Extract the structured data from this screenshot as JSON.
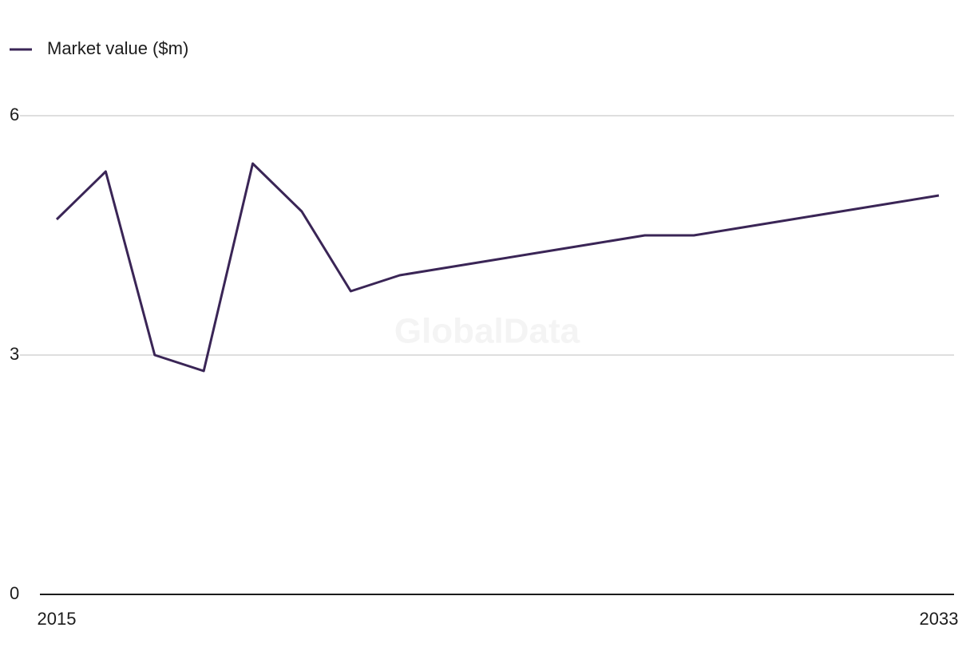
{
  "chart_data": {
    "type": "line",
    "x": [
      2015,
      2016,
      2017,
      2018,
      2019,
      2020,
      2021,
      2022,
      2023,
      2024,
      2025,
      2026,
      2027,
      2028,
      2029,
      2030,
      2031,
      2032,
      2033
    ],
    "series": [
      {
        "name": "Market value ($m)",
        "color": "#3a2556",
        "values": [
          4.7,
          5.3,
          3.0,
          2.8,
          5.4,
          4.8,
          3.8,
          4.0,
          4.1,
          4.2,
          4.3,
          4.4,
          4.5,
          4.5,
          4.6,
          4.7,
          4.8,
          4.9,
          5.0
        ]
      }
    ],
    "xlim": [
      2015,
      2033
    ],
    "xticks": [
      2015,
      2033
    ],
    "ylim": [
      0,
      6
    ],
    "yticks": [
      0,
      3,
      6
    ],
    "grid": true,
    "legend": "top-left",
    "watermark": "GlobalData"
  }
}
